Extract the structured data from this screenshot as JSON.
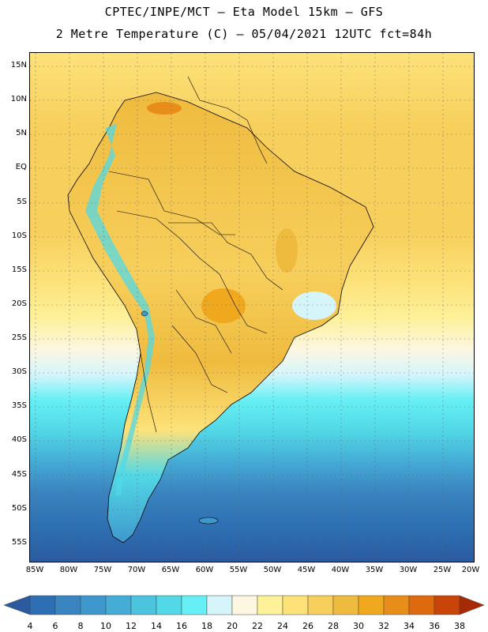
{
  "header": {
    "line1": "CPTEC/INPE/MCT –  Eta Model 15km – GFS",
    "line2": "2 Metre Temperature (C) – 05/04/2021 12UTC fct=84h"
  },
  "map": {
    "lat_labels": [
      "15N",
      "10N",
      "5N",
      "EQ",
      "5S",
      "10S",
      "15S",
      "20S",
      "25S",
      "30S",
      "35S",
      "40S",
      "45S",
      "50S",
      "55S"
    ],
    "lon_labels": [
      "85W",
      "80W",
      "75W",
      "70W",
      "65W",
      "60W",
      "55W",
      "50W",
      "45W",
      "40W",
      "35W",
      "30W",
      "25W",
      "20W"
    ]
  },
  "colorbar": {
    "labels": [
      "4",
      "6",
      "8",
      "10",
      "12",
      "14",
      "16",
      "18",
      "20",
      "22",
      "24",
      "26",
      "28",
      "30",
      "32",
      "34",
      "36",
      "38"
    ],
    "colors": [
      "#2d6fb2",
      "#3a84c0",
      "#3f98cc",
      "#45acd6",
      "#4cc4de",
      "#52d8e6",
      "#66f0f5",
      "#d6f5fb",
      "#fdf6e0",
      "#fdf19a",
      "#fde27a",
      "#f7cf5c",
      "#efbb3e",
      "#f0a91f",
      "#e88c1a",
      "#de6a10",
      "#c84408",
      "#b03004"
    ],
    "low_color": "#2b5aa0",
    "high_color": "#a82a04"
  }
}
